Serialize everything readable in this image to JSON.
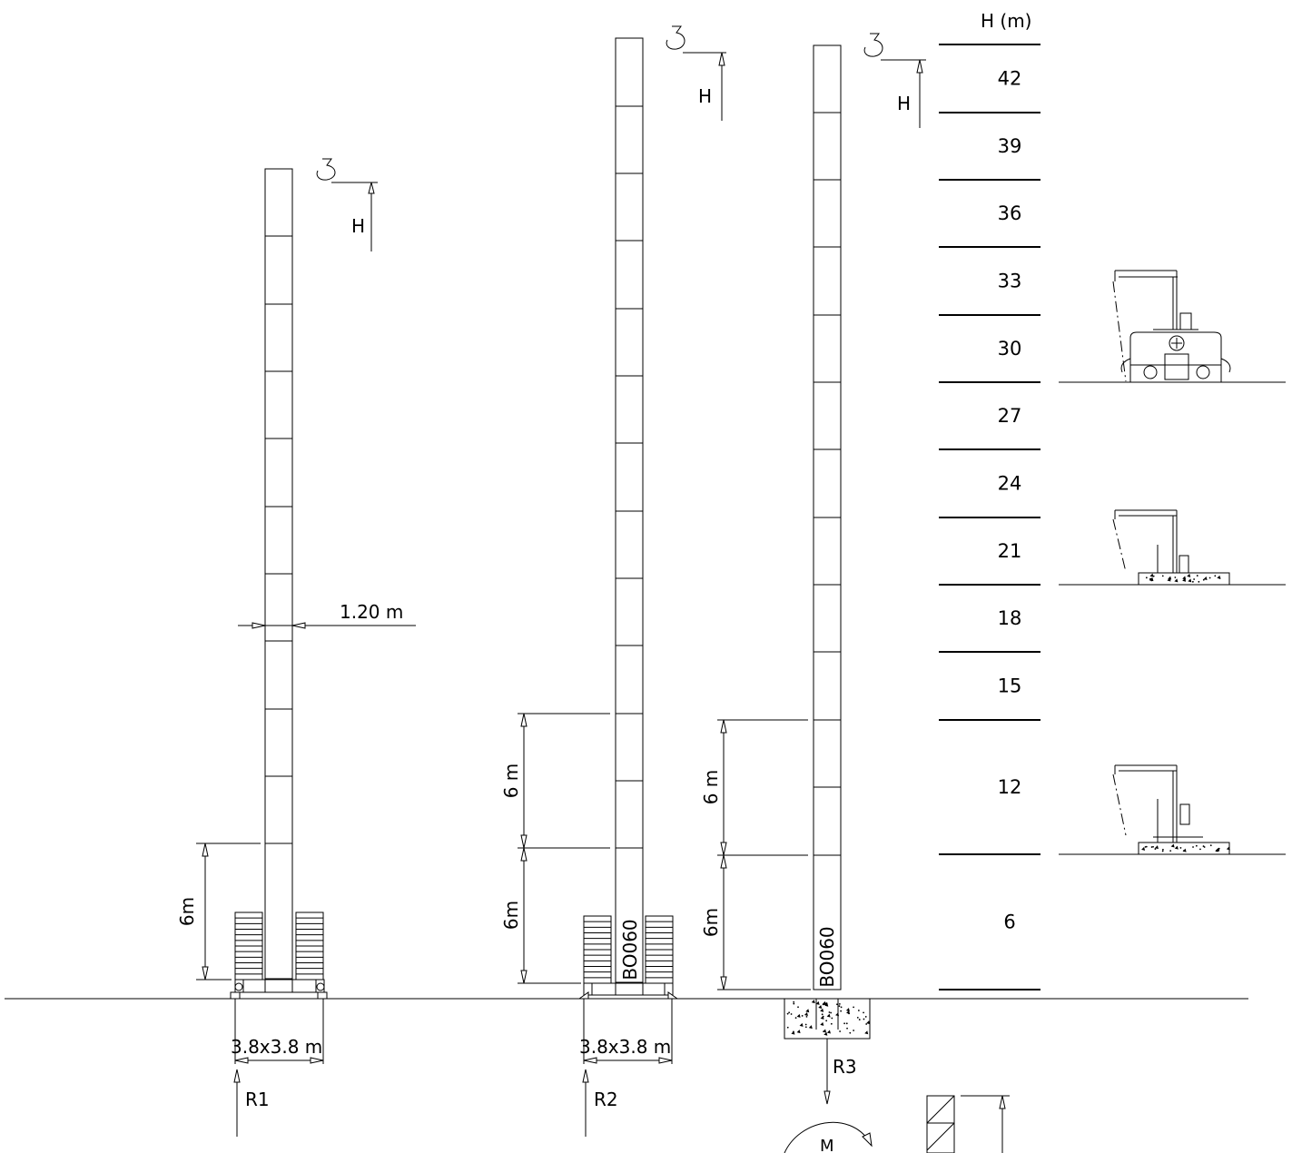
{
  "height_scale": {
    "header": "H (m)",
    "levels": [
      "42",
      "39",
      "36",
      "33",
      "30",
      "27",
      "24",
      "21",
      "18",
      "15",
      "12",
      "6"
    ]
  },
  "crane_left": {
    "hook_height_label": "H",
    "mast_width_label": "1.20 m",
    "base_section_label": "6m",
    "base_size_label": "3.8x3.8 m",
    "reaction_label": "R1"
  },
  "crane_middle": {
    "hook_height_label": "H",
    "section_label_upper": "6 m",
    "section_label_lower": "6m",
    "mast_code": "BO060",
    "base_size_label": "3.8x3.8 m",
    "reaction_label": "R2"
  },
  "crane_right": {
    "hook_height_label": "H",
    "section_label_upper": "6 m",
    "section_label_lower": "6m",
    "mast_code": "BO060",
    "reaction_label": "R3",
    "moment_label": "M"
  }
}
